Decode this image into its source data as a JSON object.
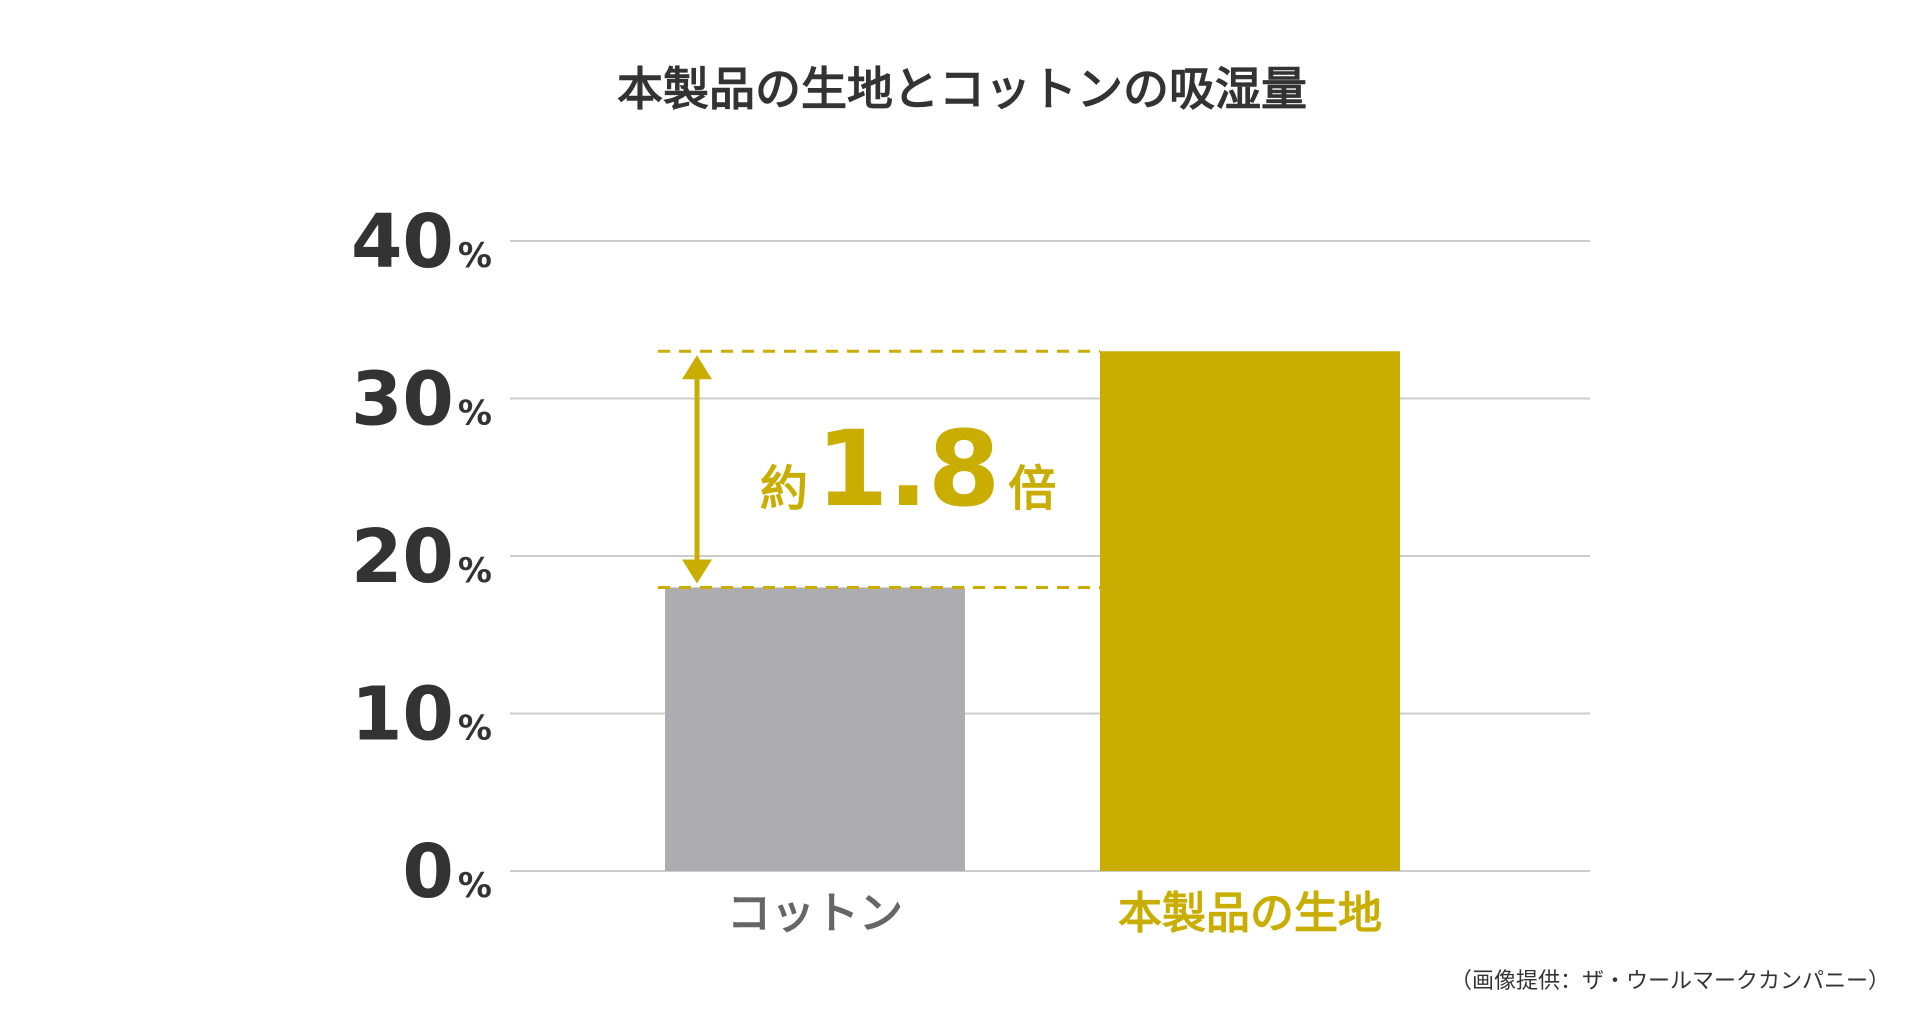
{
  "chart_data": {
    "type": "bar",
    "title": "本製品の生地とコットンの吸湿量",
    "categories": [
      "コットン",
      "本製品の生地"
    ],
    "values": [
      18,
      33
    ],
    "unit": "%",
    "ylim": [
      0,
      40
    ],
    "yticks": [
      0,
      10,
      20,
      30,
      40
    ],
    "grid": true,
    "colors": [
      "#adadaf",
      "#c9ad00"
    ],
    "category_label_colors": [
      "#666666",
      "#c9ad00"
    ],
    "annotation": {
      "prefix": "約",
      "value": "1.8",
      "suffix": "倍",
      "color": "#c9ad00"
    }
  },
  "credit": "（画像提供：ザ・ウールマークカンパニー）",
  "colors": {
    "grid": "#cccccc",
    "text": "#333333"
  }
}
